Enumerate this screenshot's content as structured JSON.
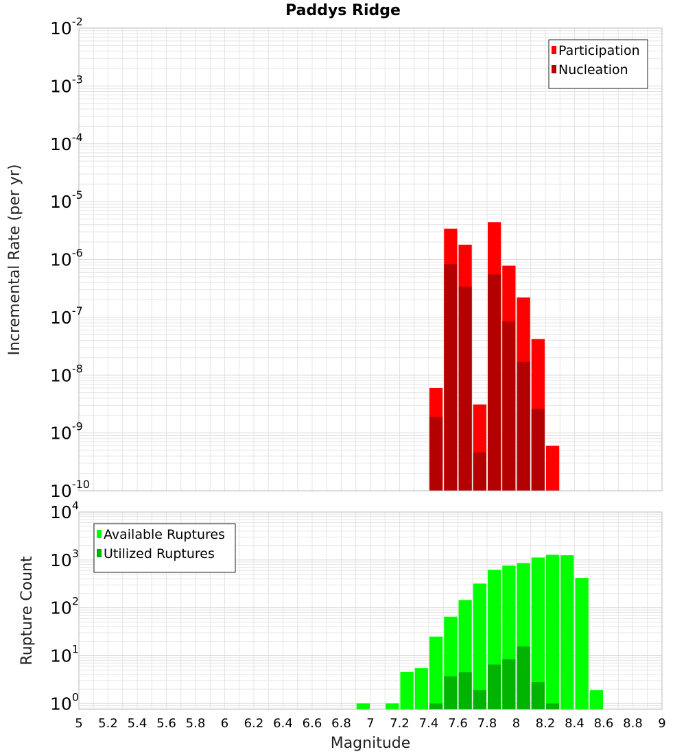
{
  "chart_data": [
    {
      "type": "bar",
      "title": "Paddys Ridge",
      "ylabel": "Incremental Rate (per yr)",
      "xlabel": "",
      "y_scale": "log",
      "ylim": [
        1e-10,
        0.01
      ],
      "y_tick_labels": [
        {
          "exp": "-10"
        },
        {
          "exp": "-9"
        },
        {
          "exp": "-8"
        },
        {
          "exp": "-7"
        },
        {
          "exp": "-6"
        },
        {
          "exp": "-5"
        },
        {
          "exp": "-4"
        },
        {
          "exp": "-3"
        },
        {
          "exp": "-2"
        }
      ],
      "xlim": [
        5,
        9
      ],
      "bar_width": 0.1,
      "legend_position": "top-right",
      "grid": true,
      "series": [
        {
          "name": "Participation",
          "color": "#ff0000",
          "x": [
            7.45,
            7.55,
            7.65,
            7.75,
            7.85,
            7.95,
            8.05,
            8.15,
            8.25
          ],
          "values": [
            6e-09,
            3.4e-06,
            1.8e-06,
            3.1e-09,
            4.4e-06,
            7.8e-07,
            2.2e-07,
            4.2e-08,
            6e-10
          ]
        },
        {
          "name": "Nucleation",
          "color": "#b30000",
          "x": [
            7.45,
            7.55,
            7.65,
            7.75,
            7.85,
            7.95,
            8.05,
            8.15
          ],
          "values": [
            1.9e-09,
            8.3e-07,
            3.4e-07,
            4.6e-10,
            5.5e-07,
            8.5e-08,
            1.7e-08,
            2.6e-09
          ]
        }
      ]
    },
    {
      "type": "bar",
      "title": "",
      "ylabel": "Rupture Count",
      "xlabel": "Magnitude",
      "y_scale": "log",
      "ylim": [
        0.75,
        10000
      ],
      "y_tick_labels": [
        {
          "exp": "0"
        },
        {
          "exp": "1"
        },
        {
          "exp": "2"
        },
        {
          "exp": "3"
        },
        {
          "exp": "4"
        }
      ],
      "xlim": [
        5,
        9
      ],
      "x_tick_labels": [
        "5",
        "5.2",
        "5.4",
        "5.6",
        "5.8",
        "6",
        "6.2",
        "6.4",
        "6.6",
        "6.8",
        "7",
        "7.2",
        "7.4",
        "7.6",
        "7.8",
        "8",
        "8.2",
        "8.4",
        "8.6",
        "8.8",
        "9"
      ],
      "bar_width": 0.1,
      "legend_position": "top-left",
      "grid": true,
      "series": [
        {
          "name": "Available Ruptures",
          "color": "#00ff00",
          "x": [
            6.95,
            7.15,
            7.25,
            7.35,
            7.45,
            7.55,
            7.65,
            7.75,
            7.85,
            7.95,
            8.05,
            8.15,
            8.25,
            8.35,
            8.45,
            8.55
          ],
          "values": [
            1,
            1,
            4.6,
            5.5,
            25,
            65,
            145,
            320,
            620,
            760,
            860,
            1120,
            1280,
            1250,
            420,
            1.9
          ]
        },
        {
          "name": "Utilized Ruptures",
          "color": "#00b300",
          "x": [
            7.45,
            7.55,
            7.65,
            7.75,
            7.85,
            7.95,
            8.05,
            8.15,
            8.25
          ],
          "values": [
            1,
            3.7,
            4.5,
            1.9,
            6.5,
            8.4,
            15.5,
            2.8,
            1
          ]
        }
      ]
    }
  ]
}
